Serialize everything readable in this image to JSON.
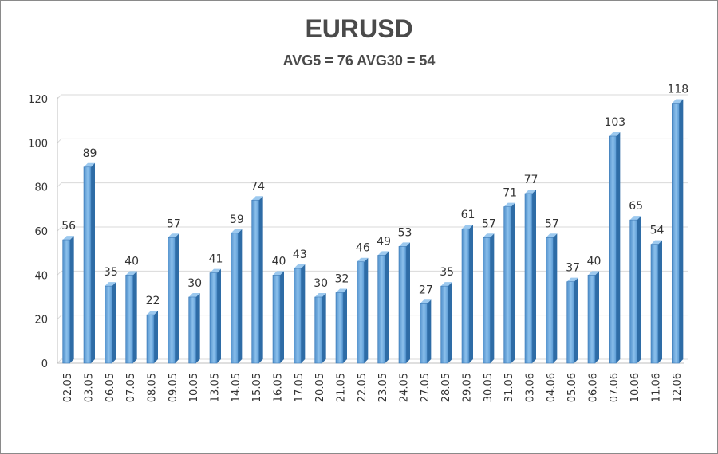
{
  "chart_data": {
    "type": "bar",
    "title": "EURUSD",
    "subtitle": "AVG5 = 76 AVG30 = 54",
    "categories": [
      "02.05",
      "03.05",
      "06.05",
      "07.05",
      "08.05",
      "09.05",
      "10.05",
      "13.05",
      "14.05",
      "15.05",
      "16.05",
      "17.05",
      "20.05",
      "21.05",
      "22.05",
      "23.05",
      "24.05",
      "27.05",
      "28.05",
      "29.05",
      "30.05",
      "31.05",
      "03.06",
      "04.06",
      "05.06",
      "06.06",
      "07.06",
      "10.06",
      "11.06",
      "12.06"
    ],
    "values": [
      56,
      89,
      35,
      40,
      22,
      57,
      30,
      41,
      59,
      74,
      40,
      43,
      30,
      32,
      46,
      49,
      53,
      27,
      35,
      61,
      57,
      71,
      77,
      57,
      37,
      40,
      103,
      65,
      54,
      118
    ],
    "yticks": [
      0,
      20,
      40,
      60,
      80,
      100,
      120
    ],
    "ylim": [
      0,
      120
    ],
    "grid": true,
    "data_labels": true,
    "bar_color": "#5b9bd5",
    "bar_dark_color": "#2e6ca6"
  }
}
